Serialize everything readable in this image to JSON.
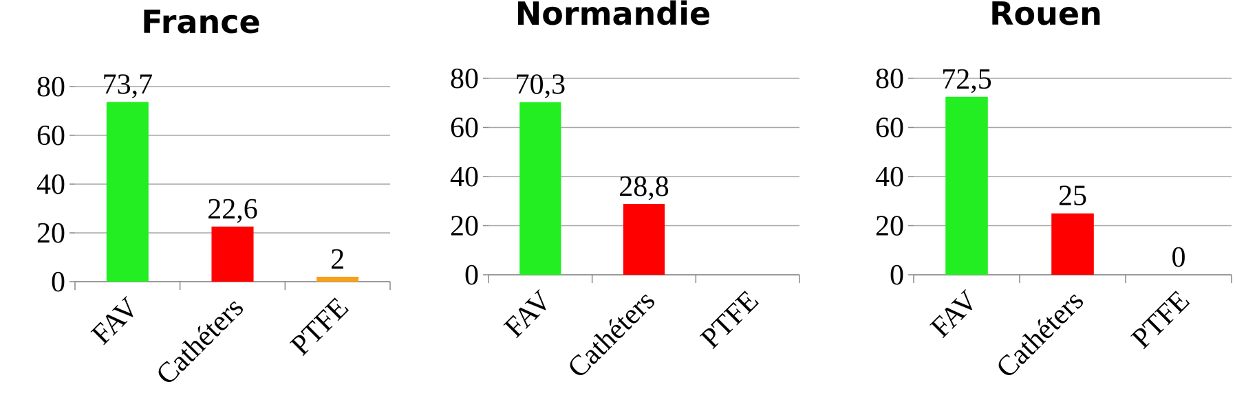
{
  "chart_data": [
    {
      "type": "bar",
      "title": "France",
      "categories": [
        "FAV",
        "Cathéters",
        "PTFE"
      ],
      "values": [
        73.7,
        22.6,
        2
      ],
      "value_labels": [
        "73,7",
        "22,6",
        "2"
      ],
      "colors": [
        "#22ee22",
        "#ff0000",
        "#f7a11a"
      ],
      "ylim": [
        0,
        80
      ],
      "yticks": [
        0,
        20,
        40,
        60,
        80
      ],
      "grid": true
    },
    {
      "type": "bar",
      "title": "Normandie",
      "categories": [
        "FAV",
        "Cathéters",
        "PTFE"
      ],
      "values": [
        70.3,
        28.8,
        null
      ],
      "value_labels": [
        "70,3",
        "28,8",
        null
      ],
      "colors": [
        "#22ee22",
        "#ff0000",
        "#f7a11a"
      ],
      "ylim": [
        0,
        80
      ],
      "yticks": [
        0,
        20,
        40,
        60,
        80
      ],
      "grid": true
    },
    {
      "type": "bar",
      "title": "Rouen",
      "categories": [
        "FAV",
        "Cathéters",
        "PTFE"
      ],
      "values": [
        72.5,
        25,
        0
      ],
      "value_labels": [
        "72,5",
        "25",
        "0"
      ],
      "colors": [
        "#22ee22",
        "#ff0000",
        "#f7a11a"
      ],
      "ylim": [
        0,
        80
      ],
      "yticks": [
        0,
        20,
        40,
        60,
        80
      ],
      "grid": true
    }
  ]
}
